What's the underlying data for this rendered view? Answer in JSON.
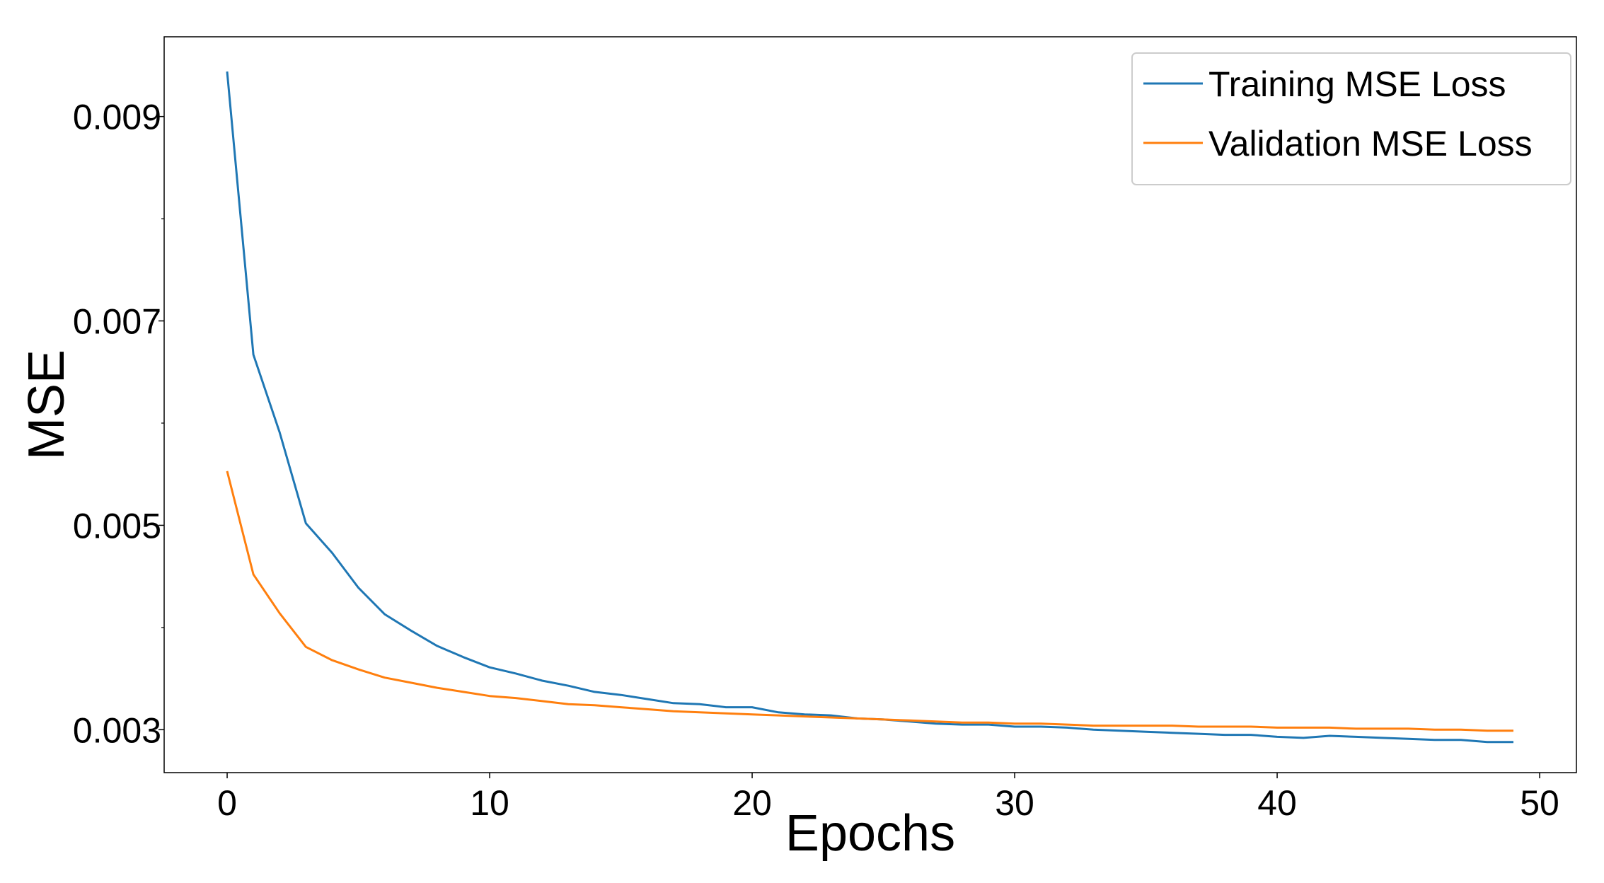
{
  "chart_data": {
    "type": "line",
    "title": "",
    "xlabel": "Epochs",
    "ylabel": "MSE",
    "xlim": [
      -2.4,
      51.4
    ],
    "ylim": [
      0.00258,
      0.00978
    ],
    "xticks": [
      0,
      10,
      20,
      30,
      40,
      50
    ],
    "xtick_labels": [
      "0",
      "10",
      "20",
      "30",
      "40",
      "50"
    ],
    "yticks": [
      0.003,
      0.005,
      0.007,
      0.009
    ],
    "ytick_labels": [
      "0.003",
      "0.005",
      "0.007",
      "0.009"
    ],
    "yminor_ticks": [
      0.004,
      0.006,
      0.008
    ],
    "grid": false,
    "legend_position": "top-right",
    "x": [
      0,
      1,
      2,
      3,
      4,
      5,
      6,
      7,
      8,
      9,
      10,
      11,
      12,
      13,
      14,
      15,
      16,
      17,
      18,
      19,
      20,
      21,
      22,
      23,
      24,
      25,
      26,
      27,
      28,
      29,
      30,
      31,
      32,
      33,
      34,
      35,
      36,
      37,
      38,
      39,
      40,
      41,
      42,
      43,
      44,
      45,
      46,
      47,
      48,
      49
    ],
    "series": [
      {
        "name": "Training MSE Loss",
        "color": "#1f77b4",
        "values": [
          0.00944,
          0.00667,
          0.00591,
          0.00502,
          0.00473,
          0.00439,
          0.00413,
          0.00397,
          0.00382,
          0.00371,
          0.00361,
          0.00355,
          0.00348,
          0.00343,
          0.00337,
          0.00334,
          0.0033,
          0.00326,
          0.00325,
          0.00322,
          0.00322,
          0.00317,
          0.00315,
          0.00314,
          0.00311,
          0.0031,
          0.00308,
          0.00306,
          0.00305,
          0.00305,
          0.00303,
          0.00303,
          0.00302,
          0.003,
          0.00299,
          0.00298,
          0.00297,
          0.00296,
          0.00295,
          0.00295,
          0.00293,
          0.00292,
          0.00294,
          0.00293,
          0.00292,
          0.00291,
          0.0029,
          0.0029,
          0.00288,
          0.00288
        ]
      },
      {
        "name": "Validation MSE Loss",
        "color": "#ff7f0e",
        "values": [
          0.00553,
          0.00452,
          0.00414,
          0.00381,
          0.00368,
          0.00359,
          0.00351,
          0.00346,
          0.00341,
          0.00337,
          0.00333,
          0.00331,
          0.00328,
          0.00325,
          0.00324,
          0.00322,
          0.0032,
          0.00318,
          0.00317,
          0.00316,
          0.00315,
          0.00314,
          0.00313,
          0.00312,
          0.00311,
          0.0031,
          0.00309,
          0.00308,
          0.00307,
          0.00307,
          0.00306,
          0.00306,
          0.00305,
          0.00304,
          0.00304,
          0.00304,
          0.00304,
          0.00303,
          0.00303,
          0.00303,
          0.00302,
          0.00302,
          0.00302,
          0.00301,
          0.00301,
          0.00301,
          0.003,
          0.003,
          0.00299,
          0.00299
        ]
      }
    ]
  }
}
